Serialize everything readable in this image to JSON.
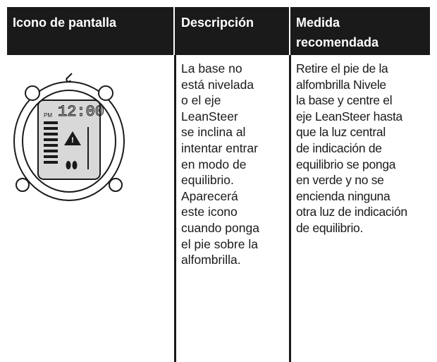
{
  "table": {
    "header": [
      "Icono de pantalla",
      "Descripción",
      [
        "Medida",
        "recomendada"
      ]
    ],
    "rows": [
      [
        {
          "pm": "PM",
          "time": "12:00"
        },
        [
          "La base no",
          "está nivelada",
          "o el eje",
          "LeanSteer",
          "se inclina al",
          "intentar entrar",
          "en modo de",
          "equilibrio.",
          "Aparecerá",
          "este icono",
          "cuando ponga",
          "el pie sobre la",
          "alfombrilla."
        ],
        [
          "Retire el pie de la",
          "alfombrilla Nivele",
          "la base y centre el",
          "eje LeanSteer hasta",
          "que la luz central",
          "de indicación de",
          "equilibrio se ponga",
          "en verde y no se",
          "encienda ninguna",
          "otra luz de indicación",
          "de equilibrio."
        ]
      ]
    ]
  }
}
